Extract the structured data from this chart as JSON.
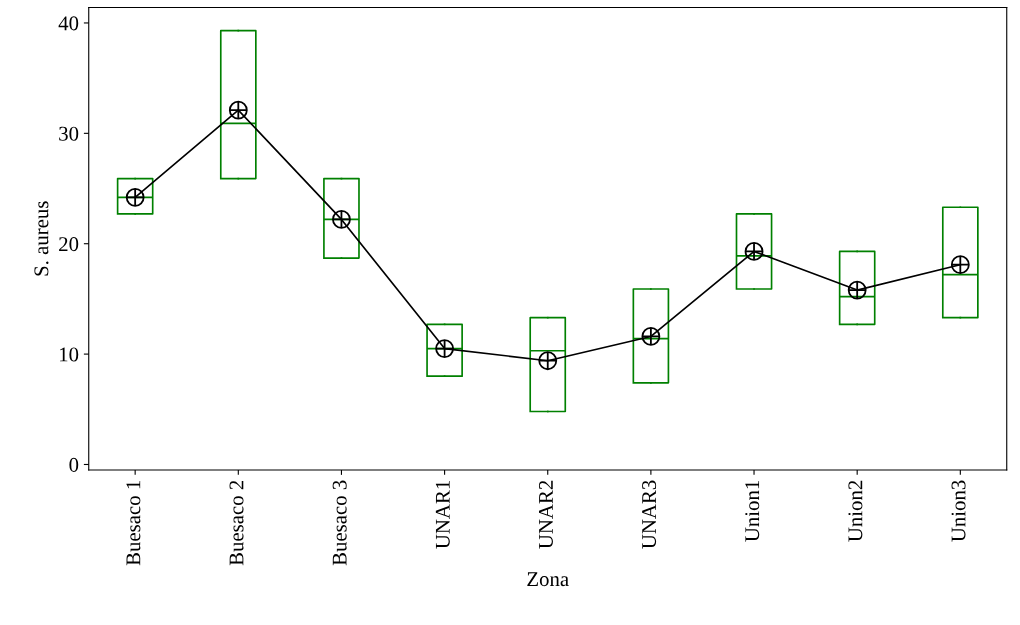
{
  "chart_data": {
    "type": "box",
    "xlabel": "Zona",
    "ylabel": "S. aureus",
    "categories": [
      "Buesaco 1",
      "Buesaco 2",
      "Buesaco 3",
      "UNAR1",
      "UNAR2",
      "UNAR3",
      "Union1",
      "Union2",
      "Union3"
    ],
    "color": "#008000",
    "boxes": [
      {
        "low": 22.7,
        "q1": 22.7,
        "median": 24.2,
        "q3": 25.9,
        "high": 25.9
      },
      {
        "low": 25.9,
        "q1": 25.9,
        "median": 30.9,
        "q3": 39.3,
        "high": 39.3
      },
      {
        "low": 18.7,
        "q1": 18.7,
        "median": 22.2,
        "q3": 25.9,
        "high": 25.9
      },
      {
        "low": 8.0,
        "q1": 8.0,
        "median": 10.5,
        "q3": 12.7,
        "high": 12.7
      },
      {
        "low": 4.8,
        "q1": 4.8,
        "median": 10.3,
        "q3": 13.3,
        "high": 13.3
      },
      {
        "low": 7.4,
        "q1": 7.4,
        "median": 11.4,
        "q3": 15.9,
        "high": 15.9
      },
      {
        "low": 15.9,
        "q1": 15.9,
        "median": 18.9,
        "q3": 22.7,
        "high": 22.7
      },
      {
        "low": 12.7,
        "q1": 12.7,
        "median": 15.2,
        "q3": 19.3,
        "high": 19.3
      },
      {
        "low": 13.3,
        "q1": 13.3,
        "median": 17.2,
        "q3": 23.3,
        "high": 23.3
      }
    ],
    "series": [
      {
        "type": "line",
        "color": "#000000",
        "marker": "circle",
        "values": [
          24.2,
          32.1,
          22.2,
          10.5,
          9.4,
          11.6,
          19.3,
          15.8,
          18.1
        ]
      }
    ],
    "ylim": [
      -0.5,
      41.4
    ],
    "yticks": [
      0,
      10,
      20,
      30,
      40
    ],
    "grid": false
  }
}
